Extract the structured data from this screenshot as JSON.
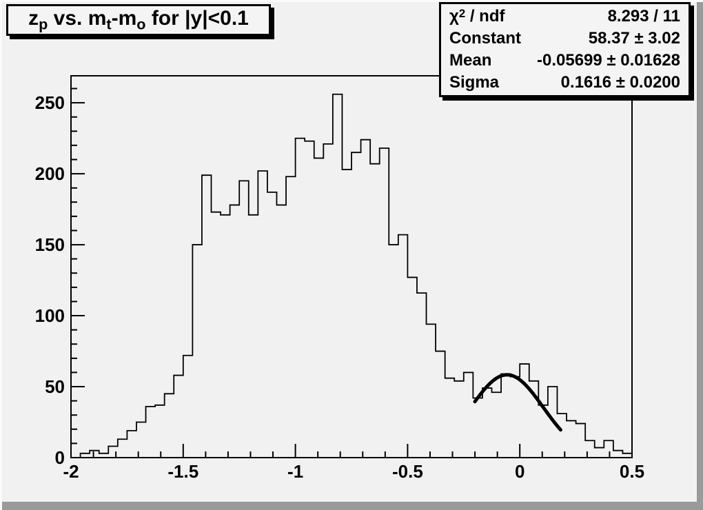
{
  "title": {
    "plain": "z_p vs. m_t-m_o for |y|<0.1",
    "segments": [
      {
        "t": "z"
      },
      {
        "sub": "p"
      },
      {
        "t": " vs. m"
      },
      {
        "sub": "t"
      },
      {
        "t": "-m"
      },
      {
        "sub": "o"
      },
      {
        "t": " for |y|<0.1"
      }
    ]
  },
  "stats_box": {
    "rows": [
      {
        "label_segments": [
          {
            "t": "χ"
          },
          {
            "sup": "2"
          },
          {
            "t": " / ndf"
          }
        ],
        "value": "8.293 / 11"
      },
      {
        "label_segments": [
          {
            "t": "Constant"
          }
        ],
        "value": "58.37 ± 3.02"
      },
      {
        "label_segments": [
          {
            "t": "Mean"
          }
        ],
        "value": "-0.05699 ± 0.01628"
      },
      {
        "label_segments": [
          {
            "t": "Sigma"
          }
        ],
        "value": "0.1616 ± 0.0200"
      }
    ]
  },
  "chart_data": {
    "type": "bar",
    "style": "step-histogram",
    "title": "z_p vs. m_t-m_o for |y|<0.1",
    "xlabel": "",
    "ylabel": "",
    "xlim": [
      -2.0,
      0.5
    ],
    "ylim": [
      0,
      269
    ],
    "grid": false,
    "bin_start": -2.0,
    "bin_width": 0.0416667,
    "n_bins": 60,
    "counts": [
      0,
      3,
      5,
      3,
      8,
      13,
      19,
      25,
      36,
      37,
      45,
      58,
      72,
      150,
      199,
      173,
      171,
      178,
      195,
      171,
      202,
      187,
      178,
      198,
      225,
      223,
      211,
      221,
      256,
      203,
      215,
      224,
      207,
      218,
      150,
      157,
      127,
      116,
      94,
      75,
      56,
      54,
      60,
      42,
      49,
      46,
      59,
      57,
      66,
      54,
      37,
      50,
      31,
      26,
      24,
      12,
      7,
      12,
      5,
      3
    ],
    "x_major_ticks": [
      -2,
      -1.5,
      -1,
      -0.5,
      0,
      0.5
    ],
    "x_tick_labels": [
      "-2",
      "-1.5",
      "-1",
      "-0.5",
      "0",
      "0.5"
    ],
    "x_minor_step": 0.1,
    "y_major_ticks": [
      0,
      50,
      100,
      150,
      200,
      250
    ],
    "y_tick_labels": [
      "0",
      "50",
      "100",
      "150",
      "200",
      "250"
    ],
    "y_minor_step": 10,
    "fit": {
      "type": "gaussian",
      "constant": 58.37,
      "mean": -0.05699,
      "sigma": 0.1616,
      "range": [
        -0.2,
        0.182
      ]
    },
    "colors": {
      "histogram_line": "#000000",
      "fit_line": "#000000",
      "frame_line": "#000000",
      "canvas_bg": "#f1f1f1",
      "box_bg": "#f4f4f4",
      "bevel_dark": "#9a9a9a",
      "bevel_light": "#fbfbfb",
      "text": "#000000"
    }
  }
}
